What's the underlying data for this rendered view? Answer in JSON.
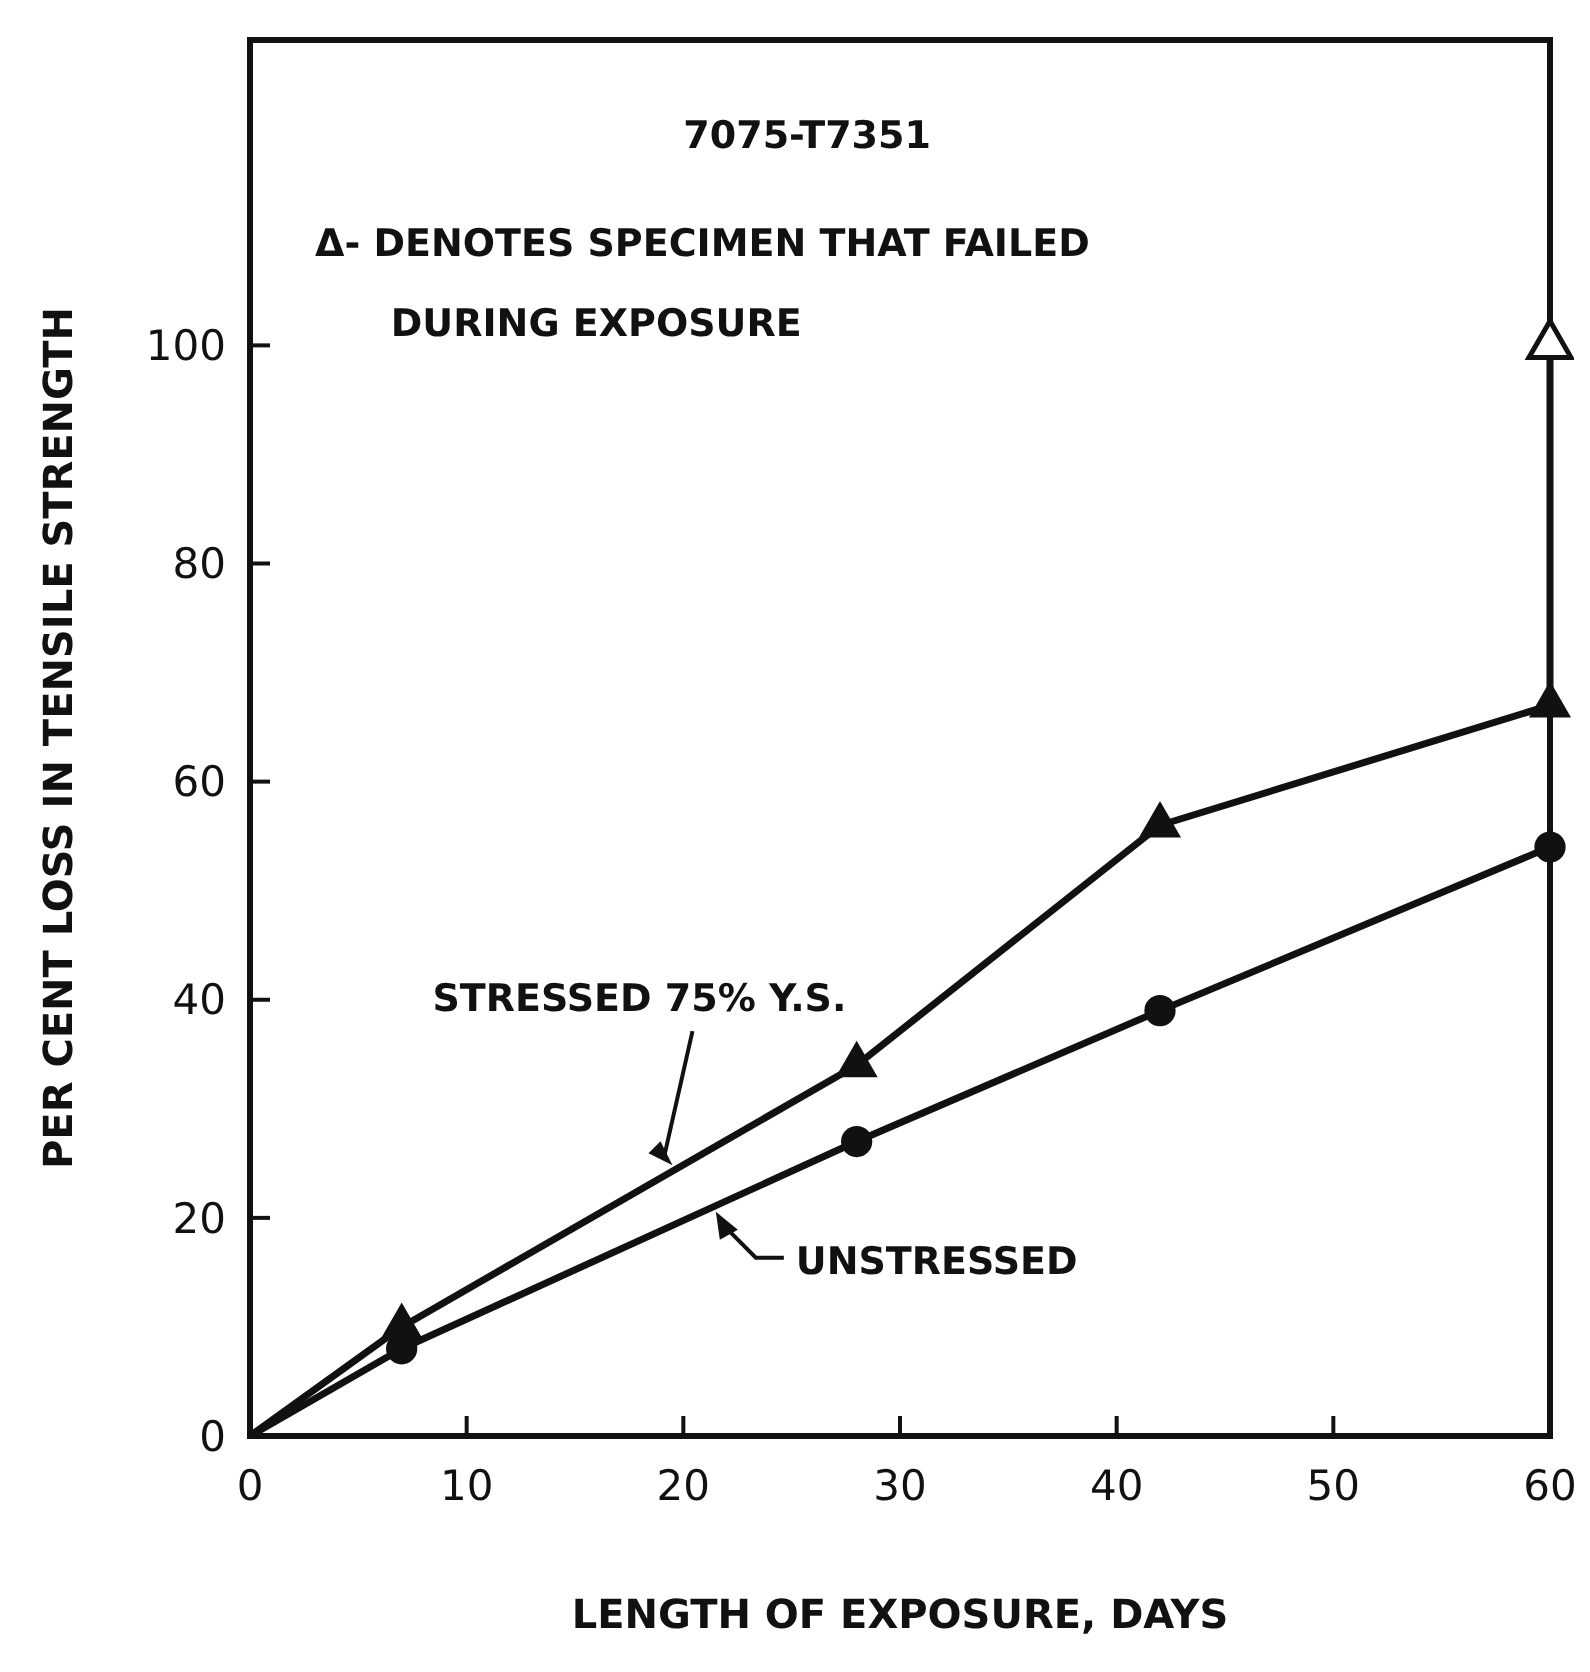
{
  "chart_data": {
    "type": "line",
    "title": "7075-T7351",
    "xlabel": "LENGTH OF EXPOSURE, DAYS",
    "ylabel": "PER CENT LOSS IN TENSILE STRENGTH",
    "annotations": [
      "Δ- DENOTES SPECIMEN THAT FAILED",
      "DURING EXPOSURE"
    ],
    "series": [
      {
        "name": "STRESSED 75% Y.S.",
        "color": "#111111",
        "marker": "triangle",
        "x": [
          0,
          7,
          28,
          42,
          60,
          60
        ],
        "values": [
          0,
          10,
          34,
          56,
          67,
          100
        ]
      },
      {
        "name": "UNSTRESSED",
        "color": "#111111",
        "marker": "circle",
        "x": [
          0,
          7,
          28,
          42,
          60
        ],
        "values": [
          0,
          8,
          27,
          39,
          54
        ]
      },
      {
        "type": "scatter",
        "color": "#ffffff",
        "marker": "triangle",
        "x": [
          60
        ],
        "values": [
          100
        ]
      }
    ],
    "xlim": [
      0,
      60
    ],
    "ylim": [
      0,
      128
    ],
    "xticks": [
      0,
      10,
      20,
      30,
      40,
      50,
      60
    ],
    "yticks": [
      0,
      20,
      40,
      60,
      80,
      100
    ],
    "grid": false
  }
}
